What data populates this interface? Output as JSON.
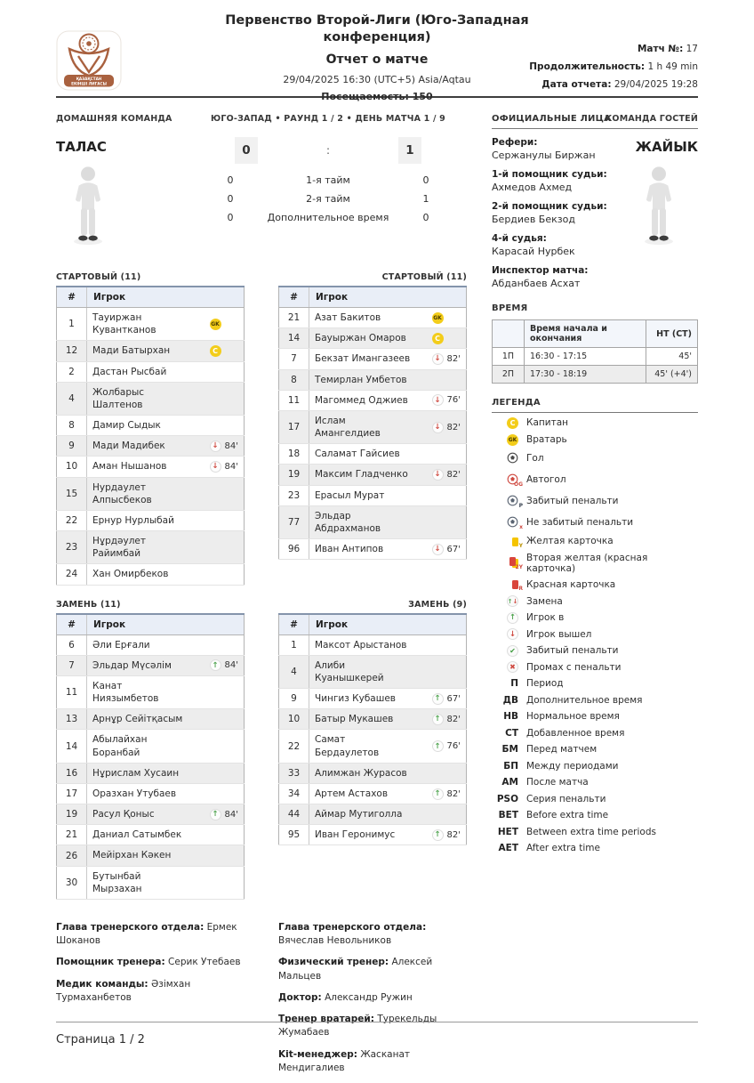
{
  "table_cols": {
    "num": "#",
    "player": "Игрок"
  },
  "header": {
    "competition": "Первенство Второй-Лиги (Юго-Западная конференция)",
    "report_title": "Отчет о матче",
    "datetime": "29/04/2025 16:30 (UTC+5) Asia/Aqtau",
    "attendance": "Посещаемость: 150",
    "match_no_label": "Матч №:",
    "match_no": "17",
    "duration_label": "Продолжительность:",
    "duration": "1 h 49 min",
    "report_date_label": "Дата отчета:",
    "report_date": "29/04/2025 19:28",
    "logo_line1": "ҚАЗАҚСТАН",
    "logo_line2": "ЕКІНШІ ЛИГАСЫ"
  },
  "scoreboard": {
    "home_label": "ДОМАШНЯЯ КОМАНДА",
    "center_label": "ЮГО-ЗАПАД • РАУНД 1 / 2 • ДЕНЬ МАТЧА 1 / 9",
    "away_label": "КОМАНДА ГОСТЕЙ",
    "home_team": "ТАЛАС",
    "away_team": "ЖАЙЫК",
    "home_score": "0",
    "away_score": "1",
    "separator": ":",
    "periods": [
      {
        "home": "0",
        "label": "1-я тайм",
        "away": "0"
      },
      {
        "home": "0",
        "label": "2-я тайм",
        "away": "1"
      },
      {
        "home": "0",
        "label": "Дополнительное время",
        "away": "0"
      }
    ]
  },
  "officials": {
    "title": "ОФИЦИАЛЬНЫЕ ЛИЦА",
    "entries": [
      {
        "role": "Рефери:",
        "name": "Сержанулы Биржан"
      },
      {
        "role": "1-й помощник судьи:",
        "name": "Ахмедов Ахмед"
      },
      {
        "role": "2-й помощник судьи:",
        "name": "Бердиев Бекзод"
      },
      {
        "role": "4-й судья:",
        "name": "Карасай Нурбек"
      },
      {
        "role": "Инспектор матча:",
        "name": "Абданбаев Асхат"
      }
    ]
  },
  "time_section": {
    "title": "ВРЕМЯ",
    "col_time": "Время начала и окончания",
    "col_ht": "HT (CT)",
    "rows": [
      {
        "period": "1П",
        "time": "16:30 - 17:15",
        "ht": "45'"
      },
      {
        "period": "2П",
        "time": "17:30 - 18:19",
        "ht": "45' (+4')"
      }
    ]
  },
  "legend": {
    "title": "ЛЕГЕНДА",
    "items": [
      {
        "icon": "captain",
        "label": "Капитан"
      },
      {
        "icon": "goalkeeper",
        "label": "Вратарь"
      },
      {
        "icon": "goal",
        "label": "Гол"
      },
      {
        "icon": "own-goal",
        "label": "Автогол"
      },
      {
        "icon": "penalty-scored-ball",
        "label": "Забитый пенальти"
      },
      {
        "icon": "penalty-missed-ball",
        "label": "Не забитый пенальти"
      },
      {
        "icon": "yellow-card",
        "label": "Желтая карточка"
      },
      {
        "icon": "second-yellow-card",
        "label": "Вторая желтая (красная карточка)"
      },
      {
        "icon": "red-card",
        "label": "Красная карточка"
      },
      {
        "icon": "substitution",
        "label": "Замена"
      },
      {
        "icon": "player-in",
        "label": "Игрок в"
      },
      {
        "icon": "player-out",
        "label": "Игрок вышел"
      },
      {
        "icon": "check",
        "label": "Забитый пенальти"
      },
      {
        "icon": "cross",
        "label": "Промах с пенальти"
      },
      {
        "icon": "П",
        "text": true,
        "label": "Период"
      },
      {
        "icon": "ДВ",
        "text": true,
        "label": "Дополнительное время"
      },
      {
        "icon": "НВ",
        "text": true,
        "label": "Нормальное время"
      },
      {
        "icon": "СТ",
        "text": true,
        "label": "Добавленное время"
      },
      {
        "icon": "БМ",
        "text": true,
        "label": "Перед матчем"
      },
      {
        "icon": "БП",
        "text": true,
        "label": "Между периодами"
      },
      {
        "icon": "АМ",
        "text": true,
        "label": "После матча"
      },
      {
        "icon": "PSO",
        "text": true,
        "label": "Серия пенальти"
      },
      {
        "icon": "BET",
        "text": true,
        "label": "Before extra time"
      },
      {
        "icon": "HET",
        "text": true,
        "label": "Between extra time periods"
      },
      {
        "icon": "AET",
        "text": true,
        "label": "After extra time"
      }
    ]
  },
  "lineups": {
    "home_starting": {
      "title": "СТАРТОВЫЙ (11)",
      "rows": [
        {
          "num": "1",
          "name": "Тауиржан Кувантканов",
          "badge": "GK"
        },
        {
          "num": "12",
          "name": "Мади Батырхан",
          "badge": "C"
        },
        {
          "num": "2",
          "name": "Дастан Рысбай"
        },
        {
          "num": "4",
          "name": "Жолбарыс Шалтенов"
        },
        {
          "num": "8",
          "name": "Дамир Сыдык"
        },
        {
          "num": "9",
          "name": "Мади Мадибек",
          "event": "out",
          "minute": "84'"
        },
        {
          "num": "10",
          "name": "Аман Нышанов",
          "event": "out",
          "minute": "84'"
        },
        {
          "num": "15",
          "name": "Нурдаулет Алпысбеков"
        },
        {
          "num": "22",
          "name": "Ернур Нурлыбай"
        },
        {
          "num": "23",
          "name": "Нұрдәулет Райимбай"
        },
        {
          "num": "24",
          "name": "Хан Омирбеков"
        }
      ]
    },
    "away_starting": {
      "title": "СТАРТОВЫЙ (11)",
      "rows": [
        {
          "num": "21",
          "name": "Азат Бакитов",
          "badge": "GK"
        },
        {
          "num": "14",
          "name": "Бауыржан Омаров",
          "badge": "C"
        },
        {
          "num": "7",
          "name": "Бекзат Имангазеев",
          "event": "out",
          "minute": "82'"
        },
        {
          "num": "8",
          "name": "Темирлан Умбетов"
        },
        {
          "num": "11",
          "name": "Магоммед Оджиев",
          "event": "out",
          "minute": "76'"
        },
        {
          "num": "17",
          "name": "Ислам Амангелдиев",
          "event": "out",
          "minute": "82'"
        },
        {
          "num": "18",
          "name": "Саламат Гайсиев"
        },
        {
          "num": "19",
          "name": "Максим Гладченко",
          "event": "out",
          "minute": "82'"
        },
        {
          "num": "23",
          "name": "Ерасыл Мурат"
        },
        {
          "num": "77",
          "name": "Эльдар Абдрахманов"
        },
        {
          "num": "96",
          "name": "Иван Антипов",
          "event": "out",
          "minute": "67'"
        }
      ]
    },
    "home_subs": {
      "title": "ЗАМЕНЬ (11)",
      "rows": [
        {
          "num": "6",
          "name": "Әли Ерғали"
        },
        {
          "num": "7",
          "name": "Эльдар Мүсәлім",
          "event": "in",
          "minute": "84'"
        },
        {
          "num": "11",
          "name": "Канат Ниязымбетов"
        },
        {
          "num": "13",
          "name": "Арнұр Сейітқасым"
        },
        {
          "num": "14",
          "name": "Абылайхан Боранбай"
        },
        {
          "num": "16",
          "name": "Нұрислам Хусаин"
        },
        {
          "num": "17",
          "name": "Оразхан Утубаев"
        },
        {
          "num": "19",
          "name": "Расул Қоныс",
          "event": "in",
          "minute": "84'"
        },
        {
          "num": "21",
          "name": "Даниал Сатымбек"
        },
        {
          "num": "26",
          "name": "Мейірхан Кәкен"
        },
        {
          "num": "30",
          "name": "Бутынбай Мырзахан"
        }
      ]
    },
    "away_subs": {
      "title": "ЗАМЕНЬ (9)",
      "rows": [
        {
          "num": "1",
          "name": "Максот Арыстанов"
        },
        {
          "num": "4",
          "name": "Алиби Куанышкерей"
        },
        {
          "num": "9",
          "name": "Чингиз Кубашев",
          "event": "in",
          "minute": "67'"
        },
        {
          "num": "10",
          "name": "Батыр Мукашев",
          "event": "in",
          "minute": "82'"
        },
        {
          "num": "22",
          "name": "Самат Бердаулетов",
          "event": "in",
          "minute": "76'"
        },
        {
          "num": "33",
          "name": "Алимжан Журасов"
        },
        {
          "num": "34",
          "name": "Артем Астахов",
          "event": "in",
          "minute": "82'"
        },
        {
          "num": "44",
          "name": "Аймар Мутиголла"
        },
        {
          "num": "95",
          "name": "Иван Геронимус",
          "event": "in",
          "minute": "82'"
        }
      ]
    }
  },
  "staff": {
    "home": [
      {
        "role": "Глава тренерского отдела:",
        "name": "Ермек Шоканов"
      },
      {
        "role": "Помощник тренера:",
        "name": "Серик Утебаев"
      },
      {
        "role": "Медик команды:",
        "name": "Әзімхан Турмаханбетов"
      }
    ],
    "away": [
      {
        "role": "Глава тренерского отдела:",
        "name": "Вячеслав Невольников"
      },
      {
        "role": "Физический тренер:",
        "name": "Алексей Мальцев"
      },
      {
        "role": "Доктор:",
        "name": "Александр Ружин"
      },
      {
        "role": "Тренер вратарей:",
        "name": "Турекельды Жумабаев"
      },
      {
        "role": "Kit-менеджер:",
        "name": "Жасканат Мендигалиев"
      }
    ]
  },
  "footer": {
    "page": "Страница 1 / 2"
  },
  "colors": {
    "accent_copper": "#a9613f",
    "badge_yellow": "#f3cd1a",
    "red": "#cf4a41",
    "green": "#53a653"
  }
}
